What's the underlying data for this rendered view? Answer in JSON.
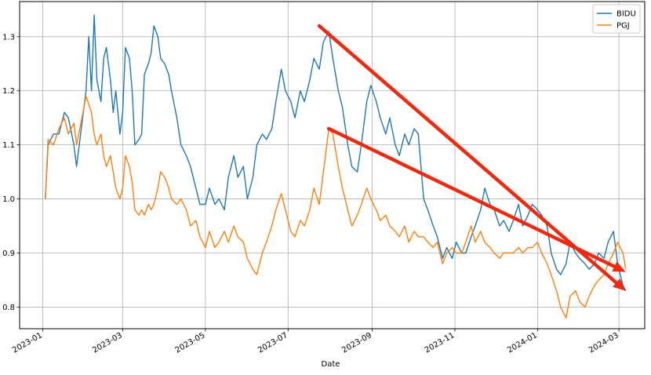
{
  "chart_data": {
    "type": "line",
    "title": "",
    "xlabel": "Date",
    "ylabel": "",
    "grid": true,
    "legend_position": "top-right",
    "xlim": [
      "2022-12-15",
      "2024-03-20"
    ],
    "ylim": [
      0.76,
      1.365
    ],
    "x_ticks": [
      "2023-01",
      "2023-03",
      "2023-05",
      "2023-07",
      "2023-09",
      "2023-11",
      "2024-01",
      "2024-03"
    ],
    "y_ticks": [
      0.8,
      0.9,
      1.0,
      1.1,
      1.2,
      1.3
    ],
    "series": [
      {
        "name": "BIDU",
        "color": "#1f77b4",
        "points": [
          [
            "2023-01-03",
            1.0
          ],
          [
            "2023-01-05",
            1.1
          ],
          [
            "2023-01-09",
            1.12
          ],
          [
            "2023-01-13",
            1.12
          ],
          [
            "2023-01-17",
            1.16
          ],
          [
            "2023-01-20",
            1.15
          ],
          [
            "2023-01-24",
            1.1
          ],
          [
            "2023-01-26",
            1.06
          ],
          [
            "2023-01-30",
            1.14
          ],
          [
            "2023-02-02",
            1.2
          ],
          [
            "2023-02-04",
            1.3
          ],
          [
            "2023-02-06",
            1.2
          ],
          [
            "2023-02-08",
            1.34
          ],
          [
            "2023-02-10",
            1.22
          ],
          [
            "2023-02-13",
            1.18
          ],
          [
            "2023-02-15",
            1.26
          ],
          [
            "2023-02-17",
            1.28
          ],
          [
            "2023-02-20",
            1.22
          ],
          [
            "2023-02-22",
            1.16
          ],
          [
            "2023-02-24",
            1.2
          ],
          [
            "2023-02-27",
            1.12
          ],
          [
            "2023-03-01",
            1.16
          ],
          [
            "2023-03-03",
            1.28
          ],
          [
            "2023-03-06",
            1.26
          ],
          [
            "2023-03-08",
            1.2
          ],
          [
            "2023-03-10",
            1.1
          ],
          [
            "2023-03-13",
            1.11
          ],
          [
            "2023-03-15",
            1.12
          ],
          [
            "2023-03-17",
            1.23
          ],
          [
            "2023-03-20",
            1.25
          ],
          [
            "2023-03-22",
            1.27
          ],
          [
            "2023-03-24",
            1.32
          ],
          [
            "2023-03-27",
            1.3
          ],
          [
            "2023-03-29",
            1.26
          ],
          [
            "2023-04-01",
            1.25
          ],
          [
            "2023-04-04",
            1.23
          ],
          [
            "2023-04-06",
            1.2
          ],
          [
            "2023-04-10",
            1.15
          ],
          [
            "2023-04-13",
            1.1
          ],
          [
            "2023-04-17",
            1.08
          ],
          [
            "2023-04-20",
            1.06
          ],
          [
            "2023-04-24",
            1.02
          ],
          [
            "2023-04-27",
            0.99
          ],
          [
            "2023-05-01",
            0.99
          ],
          [
            "2023-05-04",
            1.02
          ],
          [
            "2023-05-08",
            0.99
          ],
          [
            "2023-05-11",
            1.0
          ],
          [
            "2023-05-15",
            0.98
          ],
          [
            "2023-05-18",
            1.04
          ],
          [
            "2023-05-22",
            1.08
          ],
          [
            "2023-05-25",
            1.04
          ],
          [
            "2023-05-29",
            1.06
          ],
          [
            "2023-06-01",
            1.0
          ],
          [
            "2023-06-05",
            1.04
          ],
          [
            "2023-06-08",
            1.1
          ],
          [
            "2023-06-12",
            1.12
          ],
          [
            "2023-06-15",
            1.11
          ],
          [
            "2023-06-19",
            1.13
          ],
          [
            "2023-06-22",
            1.18
          ],
          [
            "2023-06-26",
            1.24
          ],
          [
            "2023-06-29",
            1.2
          ],
          [
            "2023-07-03",
            1.18
          ],
          [
            "2023-07-06",
            1.15
          ],
          [
            "2023-07-10",
            1.2
          ],
          [
            "2023-07-13",
            1.18
          ],
          [
            "2023-07-17",
            1.22
          ],
          [
            "2023-07-20",
            1.26
          ],
          [
            "2023-07-24",
            1.24
          ],
          [
            "2023-07-27",
            1.29
          ],
          [
            "2023-07-31",
            1.31
          ],
          [
            "2023-08-03",
            1.26
          ],
          [
            "2023-08-07",
            1.2
          ],
          [
            "2023-08-10",
            1.17
          ],
          [
            "2023-08-14",
            1.1
          ],
          [
            "2023-08-17",
            1.06
          ],
          [
            "2023-08-21",
            1.05
          ],
          [
            "2023-08-24",
            1.1
          ],
          [
            "2023-08-28",
            1.18
          ],
          [
            "2023-08-31",
            1.21
          ],
          [
            "2023-09-04",
            1.18
          ],
          [
            "2023-09-07",
            1.15
          ],
          [
            "2023-09-11",
            1.12
          ],
          [
            "2023-09-14",
            1.15
          ],
          [
            "2023-09-18",
            1.1
          ],
          [
            "2023-09-21",
            1.08
          ],
          [
            "2023-09-25",
            1.12
          ],
          [
            "2023-09-28",
            1.1
          ],
          [
            "2023-10-02",
            1.13
          ],
          [
            "2023-10-05",
            1.12
          ],
          [
            "2023-10-09",
            1.0
          ],
          [
            "2023-10-12",
            0.98
          ],
          [
            "2023-10-16",
            0.95
          ],
          [
            "2023-10-19",
            0.93
          ],
          [
            "2023-10-23",
            0.89
          ],
          [
            "2023-10-26",
            0.91
          ],
          [
            "2023-10-30",
            0.89
          ],
          [
            "2023-11-02",
            0.92
          ],
          [
            "2023-11-06",
            0.9
          ],
          [
            "2023-11-09",
            0.9
          ],
          [
            "2023-11-13",
            0.93
          ],
          [
            "2023-11-16",
            0.95
          ],
          [
            "2023-11-20",
            0.98
          ],
          [
            "2023-11-23",
            1.02
          ],
          [
            "2023-11-27",
            0.99
          ],
          [
            "2023-11-30",
            0.98
          ],
          [
            "2023-12-04",
            0.95
          ],
          [
            "2023-12-07",
            0.96
          ],
          [
            "2023-12-11",
            0.94
          ],
          [
            "2023-12-14",
            0.96
          ],
          [
            "2023-12-18",
            0.99
          ],
          [
            "2023-12-21",
            0.95
          ],
          [
            "2023-12-25",
            0.97
          ],
          [
            "2023-12-28",
            0.99
          ],
          [
            "2024-01-01",
            0.98
          ],
          [
            "2024-01-04",
            0.97
          ],
          [
            "2024-01-08",
            0.95
          ],
          [
            "2024-01-11",
            0.9
          ],
          [
            "2024-01-15",
            0.87
          ],
          [
            "2024-01-18",
            0.86
          ],
          [
            "2024-01-22",
            0.88
          ],
          [
            "2024-01-25",
            0.92
          ],
          [
            "2024-01-29",
            0.9
          ],
          [
            "2024-02-01",
            0.89
          ],
          [
            "2024-02-05",
            0.88
          ],
          [
            "2024-02-08",
            0.87
          ],
          [
            "2024-02-12",
            0.88
          ],
          [
            "2024-02-15",
            0.9
          ],
          [
            "2024-02-19",
            0.89
          ],
          [
            "2024-02-22",
            0.92
          ],
          [
            "2024-02-26",
            0.94
          ],
          [
            "2024-02-29",
            0.88
          ],
          [
            "2024-03-04",
            0.84
          ],
          [
            "2024-03-06",
            0.83
          ]
        ]
      },
      {
        "name": "PGJ",
        "color": "#ff7f0e",
        "points": [
          [
            "2023-01-03",
            1.0
          ],
          [
            "2023-01-05",
            1.11
          ],
          [
            "2023-01-09",
            1.1
          ],
          [
            "2023-01-13",
            1.13
          ],
          [
            "2023-01-17",
            1.15
          ],
          [
            "2023-01-20",
            1.12
          ],
          [
            "2023-01-24",
            1.14
          ],
          [
            "2023-01-26",
            1.1
          ],
          [
            "2023-01-30",
            1.15
          ],
          [
            "2023-02-02",
            1.19
          ],
          [
            "2023-02-06",
            1.16
          ],
          [
            "2023-02-08",
            1.12
          ],
          [
            "2023-02-10",
            1.1
          ],
          [
            "2023-02-13",
            1.12
          ],
          [
            "2023-02-15",
            1.08
          ],
          [
            "2023-02-17",
            1.06
          ],
          [
            "2023-02-20",
            1.08
          ],
          [
            "2023-02-22",
            1.05
          ],
          [
            "2023-02-24",
            1.02
          ],
          [
            "2023-02-27",
            1.0
          ],
          [
            "2023-03-01",
            1.02
          ],
          [
            "2023-03-03",
            1.08
          ],
          [
            "2023-03-06",
            1.06
          ],
          [
            "2023-03-08",
            1.03
          ],
          [
            "2023-03-10",
            0.98
          ],
          [
            "2023-03-13",
            0.97
          ],
          [
            "2023-03-15",
            0.98
          ],
          [
            "2023-03-17",
            0.97
          ],
          [
            "2023-03-20",
            0.99
          ],
          [
            "2023-03-22",
            0.98
          ],
          [
            "2023-03-24",
            0.99
          ],
          [
            "2023-03-27",
            1.02
          ],
          [
            "2023-03-29",
            1.05
          ],
          [
            "2023-04-01",
            1.04
          ],
          [
            "2023-04-04",
            1.02
          ],
          [
            "2023-04-06",
            1.0
          ],
          [
            "2023-04-10",
            0.99
          ],
          [
            "2023-04-13",
            1.0
          ],
          [
            "2023-04-17",
            0.98
          ],
          [
            "2023-04-20",
            0.95
          ],
          [
            "2023-04-24",
            0.96
          ],
          [
            "2023-04-27",
            0.93
          ],
          [
            "2023-05-01",
            0.91
          ],
          [
            "2023-05-04",
            0.94
          ],
          [
            "2023-05-08",
            0.91
          ],
          [
            "2023-05-11",
            0.92
          ],
          [
            "2023-05-15",
            0.94
          ],
          [
            "2023-05-18",
            0.92
          ],
          [
            "2023-05-22",
            0.95
          ],
          [
            "2023-05-25",
            0.93
          ],
          [
            "2023-05-29",
            0.92
          ],
          [
            "2023-06-01",
            0.89
          ],
          [
            "2023-06-05",
            0.87
          ],
          [
            "2023-06-08",
            0.86
          ],
          [
            "2023-06-12",
            0.9
          ],
          [
            "2023-06-15",
            0.92
          ],
          [
            "2023-06-19",
            0.95
          ],
          [
            "2023-06-22",
            0.98
          ],
          [
            "2023-06-26",
            1.01
          ],
          [
            "2023-06-29",
            0.98
          ],
          [
            "2023-07-03",
            0.94
          ],
          [
            "2023-07-06",
            0.93
          ],
          [
            "2023-07-10",
            0.96
          ],
          [
            "2023-07-13",
            0.95
          ],
          [
            "2023-07-17",
            0.98
          ],
          [
            "2023-07-20",
            1.02
          ],
          [
            "2023-07-24",
            0.99
          ],
          [
            "2023-07-27",
            1.05
          ],
          [
            "2023-07-31",
            1.13
          ],
          [
            "2023-08-03",
            1.12
          ],
          [
            "2023-08-07",
            1.06
          ],
          [
            "2023-08-10",
            1.02
          ],
          [
            "2023-08-14",
            0.98
          ],
          [
            "2023-08-17",
            0.95
          ],
          [
            "2023-08-21",
            0.97
          ],
          [
            "2023-08-24",
            0.99
          ],
          [
            "2023-08-28",
            1.02
          ],
          [
            "2023-08-31",
            1.0
          ],
          [
            "2023-09-04",
            0.98
          ],
          [
            "2023-09-07",
            0.96
          ],
          [
            "2023-09-11",
            0.97
          ],
          [
            "2023-09-14",
            0.95
          ],
          [
            "2023-09-18",
            0.94
          ],
          [
            "2023-09-21",
            0.93
          ],
          [
            "2023-09-25",
            0.95
          ],
          [
            "2023-09-28",
            0.92
          ],
          [
            "2023-10-02",
            0.94
          ],
          [
            "2023-10-05",
            0.93
          ],
          [
            "2023-10-09",
            0.93
          ],
          [
            "2023-10-12",
            0.92
          ],
          [
            "2023-10-16",
            0.91
          ],
          [
            "2023-10-19",
            0.92
          ],
          [
            "2023-10-23",
            0.88
          ],
          [
            "2023-10-26",
            0.9
          ],
          [
            "2023-10-30",
            0.91
          ],
          [
            "2023-11-02",
            0.9
          ],
          [
            "2023-11-06",
            0.9
          ],
          [
            "2023-11-09",
            0.92
          ],
          [
            "2023-11-13",
            0.95
          ],
          [
            "2023-11-16",
            0.92
          ],
          [
            "2023-11-20",
            0.94
          ],
          [
            "2023-11-23",
            0.92
          ],
          [
            "2023-11-27",
            0.91
          ],
          [
            "2023-11-30",
            0.9
          ],
          [
            "2023-12-04",
            0.89
          ],
          [
            "2023-12-07",
            0.9
          ],
          [
            "2023-12-11",
            0.9
          ],
          [
            "2023-12-14",
            0.9
          ],
          [
            "2023-12-18",
            0.91
          ],
          [
            "2023-12-21",
            0.9
          ],
          [
            "2023-12-25",
            0.91
          ],
          [
            "2023-12-28",
            0.91
          ],
          [
            "2024-01-01",
            0.92
          ],
          [
            "2024-01-04",
            0.9
          ],
          [
            "2024-01-08",
            0.88
          ],
          [
            "2024-01-11",
            0.86
          ],
          [
            "2024-01-15",
            0.83
          ],
          [
            "2024-01-18",
            0.8
          ],
          [
            "2024-01-22",
            0.78
          ],
          [
            "2024-01-25",
            0.82
          ],
          [
            "2024-01-29",
            0.83
          ],
          [
            "2024-02-01",
            0.81
          ],
          [
            "2024-02-05",
            0.8
          ],
          [
            "2024-02-08",
            0.82
          ],
          [
            "2024-02-12",
            0.84
          ],
          [
            "2024-02-15",
            0.85
          ],
          [
            "2024-02-19",
            0.86
          ],
          [
            "2024-02-22",
            0.88
          ],
          [
            "2024-02-26",
            0.9
          ],
          [
            "2024-02-29",
            0.92
          ],
          [
            "2024-03-04",
            0.9
          ],
          [
            "2024-03-06",
            0.87
          ]
        ]
      }
    ],
    "annotations": [
      {
        "type": "arrow",
        "color": "#ee2a10",
        "from": [
          "2023-07-24",
          1.32
        ],
        "to": [
          "2024-03-06",
          0.83
        ]
      },
      {
        "type": "arrow",
        "color": "#ee2a10",
        "from": [
          "2023-07-31",
          1.13
        ],
        "to": [
          "2024-03-06",
          0.865
        ]
      }
    ]
  }
}
